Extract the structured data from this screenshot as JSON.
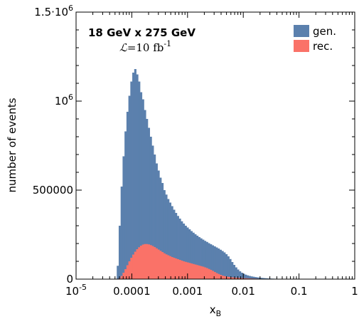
{
  "chart_data": {
    "type": "bar",
    "title": "",
    "xlabel": "x",
    "xlabel_sub": "B",
    "ylabel": "number of events",
    "x_scale": "log",
    "xlim": [
      1e-05,
      1
    ],
    "ylim": [
      0,
      1500000
    ],
    "x_ticks": [
      {
        "value": 1e-05,
        "label": "10",
        "sup": "-5"
      },
      {
        "value": 0.0001,
        "label": "0.0001",
        "sup": ""
      },
      {
        "value": 0.001,
        "label": "0.001",
        "sup": ""
      },
      {
        "value": 0.01,
        "label": "0.01",
        "sup": ""
      },
      {
        "value": 0.1,
        "label": "0.1",
        "sup": ""
      },
      {
        "value": 1,
        "label": "1",
        "sup": ""
      }
    ],
    "y_ticks": [
      {
        "value": 0,
        "label": "0",
        "sup": ""
      },
      {
        "value": 500000,
        "label": "500000",
        "sup": ""
      },
      {
        "value": 1000000,
        "label": "10",
        "sup": "6"
      },
      {
        "value": 1500000,
        "label": "1.5·10",
        "sup": "6"
      }
    ],
    "annotations": {
      "energy": "18 GeV x 275 GeV",
      "lumi_symbol": "ℒ",
      "lumi_value": "=10 fb",
      "lumi_sup": "-1"
    },
    "legend_position": "top-right",
    "bin_edges": {
      "log10_start": -4.27,
      "log10_step": 0.0348,
      "count": 95
    },
    "series": [
      {
        "name": "gen.",
        "color": "#5b80ad",
        "values": [
          75000,
          300000,
          520000,
          690000,
          830000,
          940000,
          1030000,
          1110000,
          1160000,
          1180000,
          1150000,
          1110000,
          1050000,
          1010000,
          950000,
          900000,
          850000,
          800000,
          750000,
          700000,
          650000,
          610000,
          570000,
          540000,
          500000,
          475000,
          450000,
          430000,
          410000,
          390000,
          372000,
          355000,
          340000,
          325000,
          312000,
          300000,
          290000,
          280000,
          270000,
          261000,
          252000,
          244000,
          236000,
          229000,
          222000,
          215000,
          209000,
          202000,
          196000,
          190000,
          184000,
          178000,
          172000,
          165000,
          158000,
          150000,
          140000,
          128000,
          113000,
          96000,
          80000,
          66000,
          54000,
          44000,
          36000,
          30000,
          25000,
          21000,
          18000,
          15500,
          13500,
          11500,
          10000,
          8500,
          7300,
          6200,
          5300,
          4500,
          3800,
          3200,
          2700,
          2200,
          1800,
          1500,
          1200,
          1000,
          800,
          650,
          500,
          400,
          300,
          220,
          160,
          100,
          60
        ]
      },
      {
        "name": "rec.",
        "color": "#fa7268",
        "values": [
          500,
          5000,
          18000,
          36000,
          56000,
          78000,
          100000,
          120000,
          138000,
          154000,
          168000,
          179000,
          188000,
          194000,
          197000,
          197000,
          195000,
          191000,
          186000,
          180000,
          173000,
          166000,
          159000,
          152000,
          145000,
          139000,
          134000,
          129000,
          124000,
          120000,
          116000,
          112000,
          108000,
          104000,
          100000,
          97000,
          94000,
          91000,
          88000,
          85000,
          82000,
          79000,
          76000,
          73000,
          70000,
          66000,
          62000,
          57000,
          52000,
          46000,
          40000,
          34000,
          29000,
          24000,
          20000,
          17000,
          14500,
          12500,
          11000,
          9800,
          8800,
          8000,
          7200,
          6500,
          5900,
          5300,
          4800,
          4300,
          3900,
          3500,
          3100,
          2800,
          2500,
          2200,
          1900,
          1700,
          1500,
          1300,
          1100,
          900,
          750,
          600,
          500,
          400,
          320,
          250,
          190,
          140,
          100,
          70,
          50,
          35,
          20,
          10,
          5
        ]
      }
    ]
  }
}
